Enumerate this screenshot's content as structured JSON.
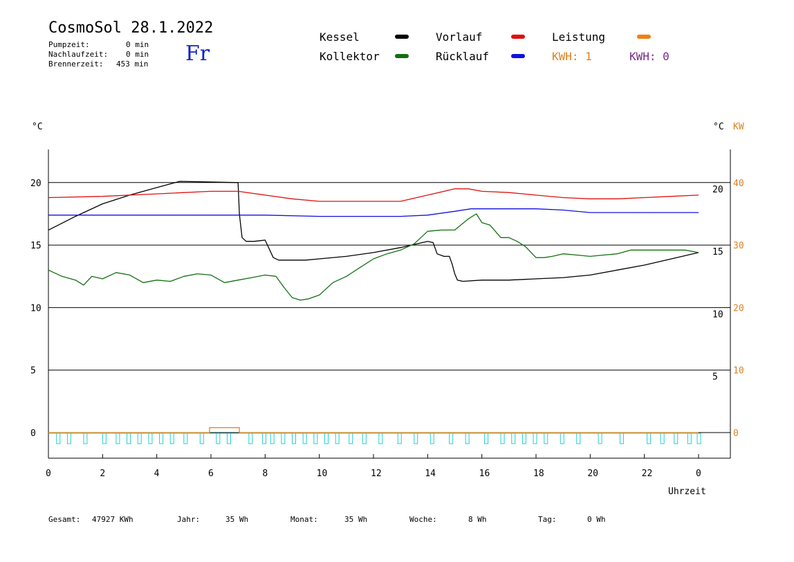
{
  "header": {
    "title": "CosmoSol 28.1.2022",
    "day": "Fr",
    "pump_label": "Pumpzeit:",
    "pump_value": "0 min",
    "nachlauf_label": "Nachlaufzeit:",
    "nachlauf_value": "0 min",
    "brenner_label": "Brennerzeit:",
    "brenner_value": "453 min"
  },
  "legend": {
    "items": [
      {
        "label": "Kessel",
        "color": "#000000"
      },
      {
        "label": "Vorlauf",
        "color": "#e01010"
      },
      {
        "label": "Leistung",
        "color": "#f08010"
      },
      {
        "label": "Kollektor",
        "color": "#107010"
      },
      {
        "label": "Rücklauf",
        "color": "#1010e0"
      }
    ],
    "kwh_orange": "KWH: 1",
    "kwh_purple": "KWH: 0",
    "kwh_orange_color": "#e08020",
    "kwh_purple_color": "#7a2a8a"
  },
  "axes": {
    "left_unit": "°C",
    "right_unit_c": "°C",
    "right_unit_kw": "KW",
    "left_ticks": [
      "20",
      "15",
      "10",
      "5",
      "0"
    ],
    "right_c_ticks": [
      "20",
      "15",
      "10",
      "5"
    ],
    "right_kw_ticks": [
      "40",
      "30",
      "20",
      "10",
      "0"
    ],
    "x_ticks": [
      "0",
      "2",
      "4",
      "6",
      "8",
      "10",
      "12",
      "14",
      "16",
      "18",
      "20",
      "22",
      "0"
    ],
    "x_label": "Uhrzeit"
  },
  "footer": {
    "gesamt_label": "Gesamt:",
    "gesamt_value": "47927 KWh",
    "jahr_label": "Jahr:",
    "jahr_value": "35 Wh",
    "monat_label": "Monat:",
    "monat_value": "35 Wh",
    "woche_label": "Woche:",
    "woche_value": "8 Wh",
    "tag_label": "Tag:",
    "tag_value": "0 Wh"
  },
  "chart_data": {
    "type": "line",
    "xlabel": "Uhrzeit",
    "ylabel": "°C",
    "xlim": [
      0,
      24
    ],
    "ylim": [
      -2,
      23
    ],
    "grid": "horizontal",
    "series": [
      {
        "name": "Kessel",
        "color": "#000000",
        "x": [
          0,
          1,
          2,
          3,
          4,
          4.85,
          7.0,
          7.05,
          7.15,
          7.3,
          7.6,
          8.0,
          8.15,
          8.3,
          8.5,
          9.0,
          9.5,
          10.0,
          11.0,
          12.0,
          13.0,
          14.0,
          14.2,
          14.35,
          14.6,
          14.8,
          14.9,
          15.0,
          15.1,
          15.3,
          16.0,
          17.0,
          18.0,
          19.0,
          20.0,
          21.0,
          22.0,
          23.0,
          24.0
        ],
        "y": [
          16.2,
          17.3,
          18.3,
          19.0,
          19.6,
          20.1,
          20.0,
          17.5,
          15.6,
          15.3,
          15.3,
          15.4,
          14.7,
          14.0,
          13.8,
          13.8,
          13.8,
          13.9,
          14.1,
          14.4,
          14.8,
          15.3,
          15.2,
          14.3,
          14.1,
          14.1,
          13.5,
          12.7,
          12.2,
          12.1,
          12.2,
          12.2,
          12.3,
          12.4,
          12.6,
          13.0,
          13.4,
          13.9,
          14.4
        ]
      },
      {
        "name": "Vorlauf",
        "color": "#e01010",
        "x": [
          0,
          2,
          4,
          6,
          7,
          8,
          9,
          10,
          11,
          12,
          13,
          14,
          15,
          15.5,
          16,
          17,
          18,
          19,
          20,
          21,
          22,
          23,
          24
        ],
        "y": [
          18.8,
          18.9,
          19.1,
          19.3,
          19.3,
          19.0,
          18.7,
          18.5,
          18.5,
          18.5,
          18.5,
          19.0,
          19.5,
          19.5,
          19.3,
          19.2,
          19.0,
          18.8,
          18.7,
          18.7,
          18.8,
          18.9,
          19.0
        ]
      },
      {
        "name": "Rücklauf",
        "color": "#1010e0",
        "x": [
          0,
          2,
          4,
          6,
          8,
          10,
          12,
          13,
          14,
          15,
          15.6,
          16,
          17,
          18,
          19,
          20,
          22,
          24
        ],
        "y": [
          17.4,
          17.4,
          17.4,
          17.4,
          17.4,
          17.3,
          17.3,
          17.3,
          17.4,
          17.7,
          17.9,
          17.9,
          17.9,
          17.9,
          17.8,
          17.6,
          17.6,
          17.6
        ]
      },
      {
        "name": "Kollektor",
        "color": "#107010",
        "x": [
          0,
          0.5,
          1.0,
          1.3,
          1.6,
          2.0,
          2.5,
          3.0,
          3.5,
          4.0,
          4.5,
          5.0,
          5.5,
          6.0,
          6.5,
          7.0,
          7.5,
          8.0,
          8.4,
          8.7,
          9.0,
          9.3,
          9.6,
          10.0,
          10.5,
          11.0,
          11.5,
          12.0,
          12.5,
          13.0,
          13.5,
          14.0,
          14.5,
          15.0,
          15.5,
          15.8,
          16.0,
          16.3,
          16.7,
          17.0,
          17.3,
          17.6,
          18.0,
          18.3,
          18.6,
          19.0,
          19.5,
          20.0,
          20.5,
          21.0,
          21.5,
          22.0,
          22.5,
          23.0,
          23.5,
          24.0
        ],
        "y": [
          13.0,
          12.5,
          12.2,
          11.8,
          12.5,
          12.3,
          12.8,
          12.6,
          12.0,
          12.2,
          12.1,
          12.5,
          12.7,
          12.6,
          12.0,
          12.2,
          12.4,
          12.6,
          12.5,
          11.6,
          10.8,
          10.6,
          10.7,
          11.0,
          12.0,
          12.5,
          13.2,
          13.9,
          14.3,
          14.6,
          15.1,
          16.1,
          16.2,
          16.2,
          17.1,
          17.5,
          16.8,
          16.6,
          15.6,
          15.6,
          15.3,
          14.9,
          14.0,
          14.0,
          14.1,
          14.3,
          14.2,
          14.1,
          14.2,
          14.3,
          14.6,
          14.6,
          14.6,
          14.6,
          14.6,
          14.4
        ]
      },
      {
        "name": "Leistung",
        "color": "#f08010",
        "x": [
          0,
          5.95,
          5.95,
          7.05,
          7.05,
          24
        ],
        "y": [
          0,
          0,
          0.4,
          0.4,
          0,
          0
        ]
      }
    ]
  }
}
